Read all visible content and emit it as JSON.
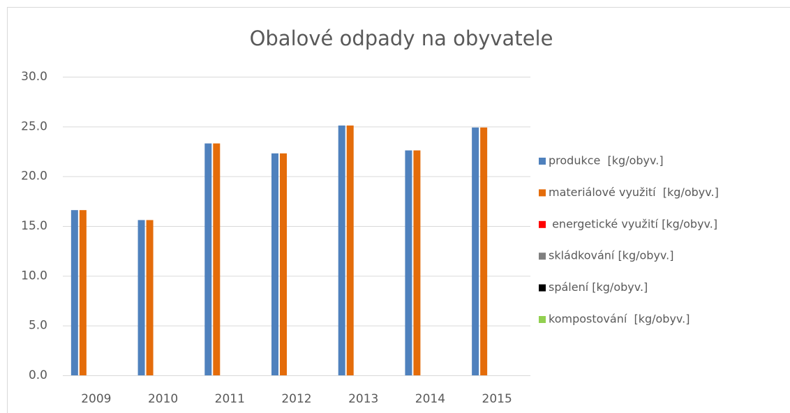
{
  "chart_data": {
    "type": "bar",
    "title": "Obalové odpady na obyvatele",
    "categories": [
      "2009",
      "2010",
      "2011",
      "2012",
      "2013",
      "2014",
      "2015"
    ],
    "series": [
      {
        "name": "produkce  [kg/obyv.]",
        "color": "#4f81bd",
        "values": [
          16.6,
          15.6,
          23.3,
          22.3,
          25.1,
          22.6,
          24.9
        ]
      },
      {
        "name": "materiálové využití  [kg/obyv.]",
        "color": "#e46c0a",
        "values": [
          16.6,
          15.6,
          23.3,
          22.3,
          25.1,
          22.6,
          24.9
        ]
      },
      {
        "name": " energetické využití [kg/obyv.]",
        "color": "#ff0000",
        "values": [
          0,
          0,
          0,
          0,
          0,
          0,
          0
        ]
      },
      {
        "name": "skládkování [kg/obyv.]",
        "color": "#7f7f7f",
        "values": [
          0,
          0,
          0,
          0,
          0,
          0,
          0
        ]
      },
      {
        "name": "spálení [kg/obyv.]",
        "color": "#000000",
        "values": [
          0,
          0,
          0,
          0,
          0,
          0,
          0
        ]
      },
      {
        "name": "kompostování  [kg/obyv.]",
        "color": "#92d050",
        "values": [
          0,
          0,
          0,
          0,
          0,
          0,
          0
        ]
      }
    ],
    "ylim": [
      0,
      30
    ],
    "yticks": [
      {
        "value": 0,
        "label": "0.0"
      },
      {
        "value": 5,
        "label": "5.0"
      },
      {
        "value": 10,
        "label": "10.0"
      },
      {
        "value": 15,
        "label": "15.0"
      },
      {
        "value": 20,
        "label": "20.0"
      },
      {
        "value": 25,
        "label": "25.0"
      },
      {
        "value": 30,
        "label": "30.0"
      }
    ],
    "grid": true,
    "legend": "right"
  }
}
